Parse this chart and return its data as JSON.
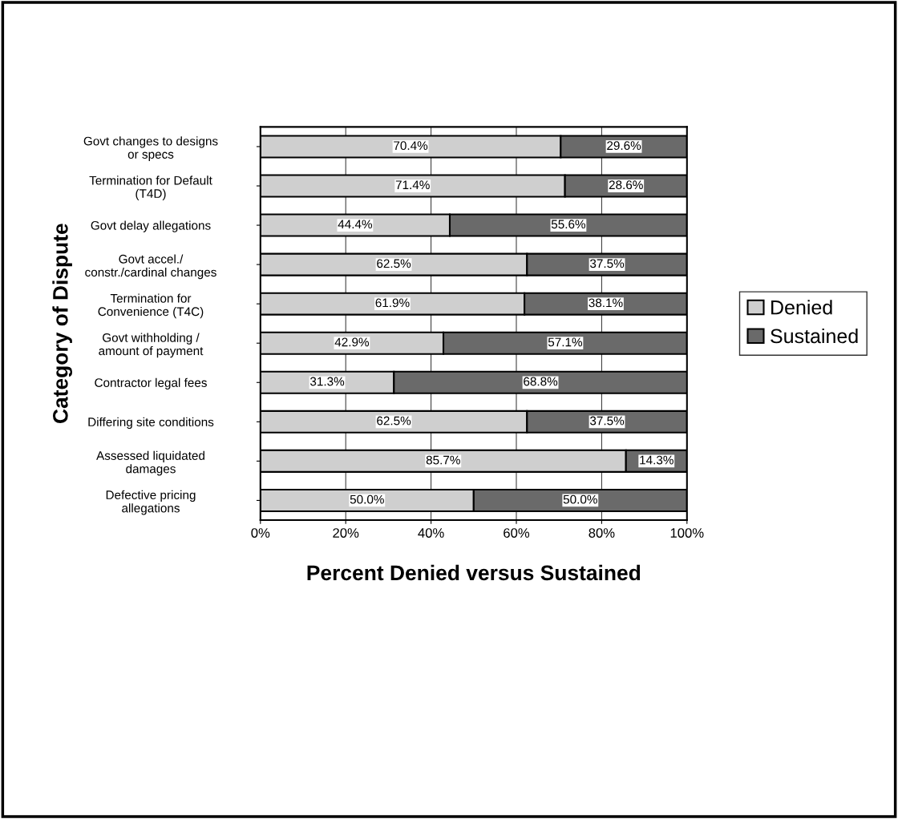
{
  "chart_data": {
    "type": "bar",
    "orientation": "horizontal",
    "stacked": true,
    "xlabel": "Percent Denied versus Sustained",
    "ylabel": "Category of Dispute",
    "categories": [
      "Govt changes to designs\nor specs",
      "Termination for Default\n(T4D)",
      "Govt delay allegations",
      "Govt accel./\nconstr./cardinal changes",
      "Termination for\nConvenience (T4C)",
      "Govt withholding /\namount of payment",
      "Contractor legal fees",
      "Differing site conditions",
      "Assessed liquidated\ndamages",
      "Defective pricing\nallegations"
    ],
    "series": [
      {
        "name": "Denied",
        "color": "#cfcfcf",
        "values": [
          70.4,
          71.4,
          44.4,
          62.5,
          61.9,
          42.9,
          31.3,
          62.5,
          85.7,
          50.0
        ],
        "value_labels": [
          "70.4%",
          "71.4%",
          "44.4%",
          "62.5%",
          "61.9%",
          "42.9%",
          "31.3%",
          "62.5%",
          "85.7%",
          "50.0%"
        ]
      },
      {
        "name": "Sustained",
        "color": "#6a6a6a",
        "values": [
          29.6,
          28.6,
          55.6,
          37.5,
          38.1,
          57.1,
          68.8,
          37.5,
          14.3,
          50.0
        ],
        "value_labels": [
          "29.6%",
          "28.6%",
          "55.6%",
          "37.5%",
          "38.1%",
          "57.1%",
          "68.8%",
          "37.5%",
          "14.3%",
          "50.0%"
        ]
      }
    ],
    "xlim": [
      0,
      100
    ],
    "xticks": [
      {
        "value": 0,
        "label": "0%"
      },
      {
        "value": 20,
        "label": "20%"
      },
      {
        "value": 40,
        "label": "40%"
      },
      {
        "value": 60,
        "label": "60%"
      },
      {
        "value": 80,
        "label": "80%"
      },
      {
        "value": 100,
        "label": "100%"
      }
    ],
    "grid": "x",
    "legend": "right"
  }
}
